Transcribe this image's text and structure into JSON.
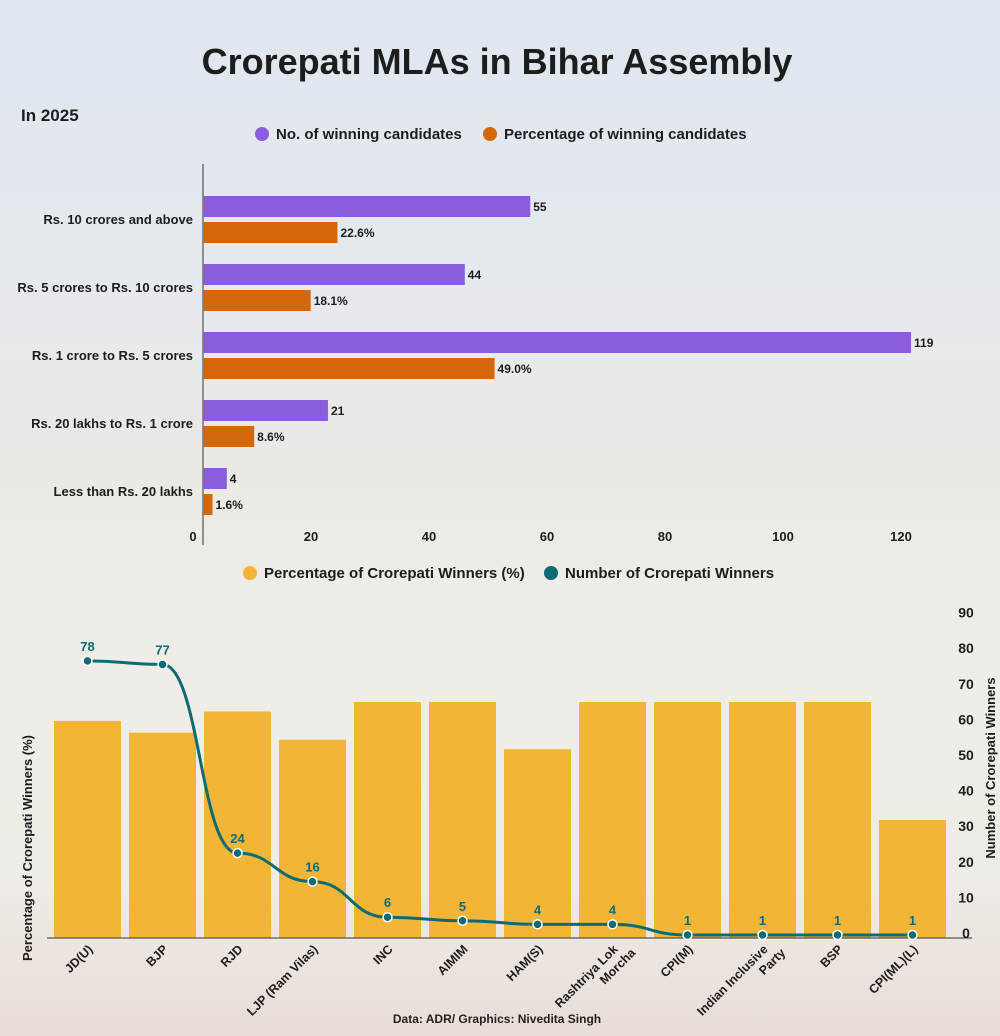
{
  "title": "Crorepati MLAs in Bihar Assembly",
  "subtitle": "In 2025",
  "footer": "Data: ADR/ Graphics: Nivedita Singh",
  "chart_data": [
    {
      "type": "bar",
      "orientation": "horizontal",
      "categories": [
        "Rs. 10 crores and above",
        "Rs. 5 crores to Rs. 10 crores",
        "Rs. 1 crore to Rs. 5 crores",
        "Rs. 20 lakhs to Rs. 1 crore",
        "Less than Rs. 20 lakhs"
      ],
      "series": [
        {
          "name": "No. of winning candidates",
          "color": "#8b5cdb",
          "values": [
            55,
            44,
            119,
            21,
            4
          ],
          "labels": [
            "55",
            "44",
            "119",
            "21",
            "4"
          ]
        },
        {
          "name": "Percentage of winning candidates",
          "color": "#d4670a",
          "values": [
            22.6,
            18.1,
            49.0,
            8.6,
            1.6
          ],
          "labels": [
            "22.6%",
            "18.1%",
            "49.0%",
            "8.6%",
            "1.6%"
          ]
        }
      ],
      "xlim": [
        0,
        120
      ],
      "xticks": [
        "0",
        "20",
        "40",
        "60",
        "80",
        "100",
        "120"
      ],
      "legend": "top"
    },
    {
      "type": "bar+line",
      "categories": [
        "JD(U)",
        "BJP",
        "RJD",
        "LJP (Ram Vilas)",
        "INC",
        "AIMIM",
        "HAM(S)",
        "Rashtriya Lok Morcha",
        "CPI(M)",
        "Indian Inclusive Party",
        "BSP",
        "CPI(ML)(L)"
      ],
      "series": [
        {
          "name": "Percentage of Crorepati Winners (%)",
          "type": "bar",
          "color": "#f2b535",
          "axis": "left",
          "values": [
            92,
            87,
            96,
            84,
            100,
            100,
            80,
            100,
            100,
            100,
            100,
            50
          ]
        },
        {
          "name": "Number of Crorepati Winners",
          "type": "line",
          "color": "#0e6b73",
          "axis": "right",
          "values": [
            78,
            77,
            24,
            16,
            6,
            5,
            4,
            4,
            1,
            1,
            1,
            1
          ]
        }
      ],
      "ylabel_left": "Percentage of Crorepati Winners (%)",
      "ylabel_right": "Number of Crorepati Winners",
      "ylim_right": [
        0,
        90
      ],
      "yticks_right": [
        "0",
        "10",
        "20",
        "30",
        "40",
        "50",
        "60",
        "70",
        "80",
        "90"
      ],
      "legend": "top"
    }
  ]
}
